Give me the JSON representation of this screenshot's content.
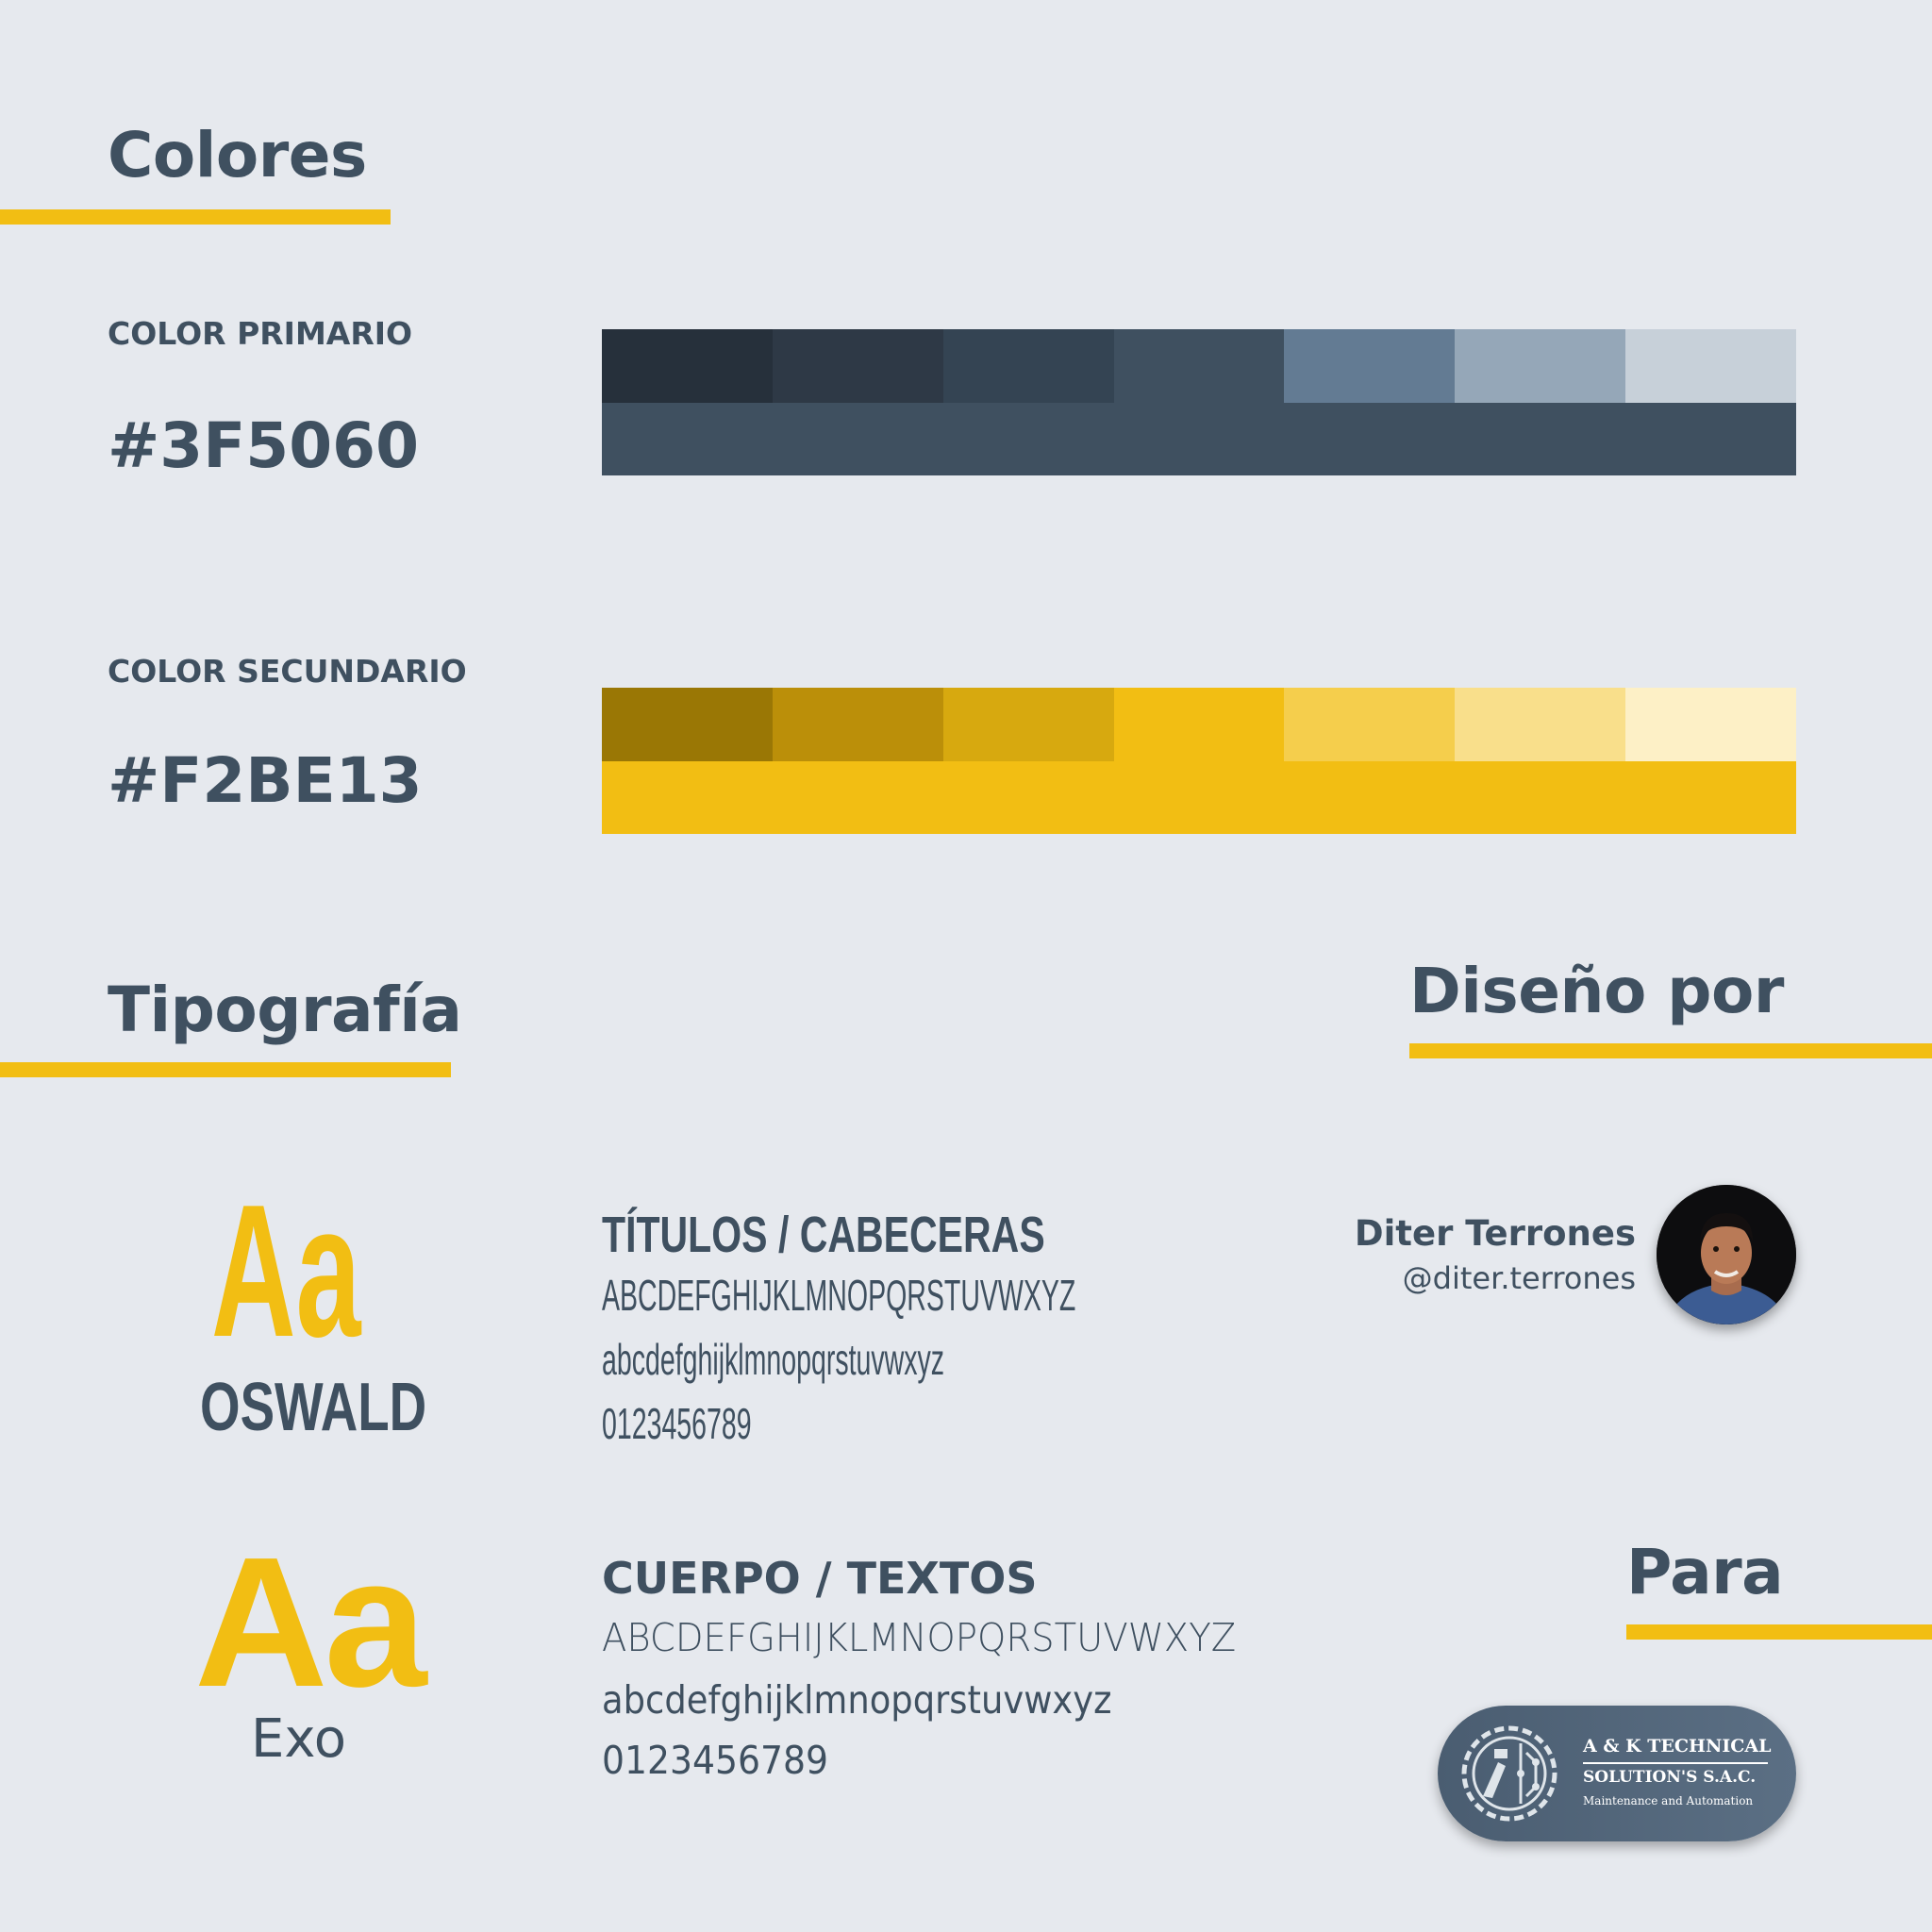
{
  "colores": {
    "title": "Colores"
  },
  "primary": {
    "label": "COLOR PRIMARIO",
    "hex": "#3F5060",
    "shades": [
      "#26303b",
      "#2e3946",
      "#344453",
      "#3f5060",
      "#637b93",
      "#95a7b8",
      "#c7d0d9"
    ],
    "main": "#3f5060"
  },
  "secondary": {
    "label": "COLOR SECUNDARIO",
    "hex": "#F2BE13",
    "shades": [
      "#9a7705",
      "#bb8f09",
      "#d7a90f",
      "#f2be13",
      "#f5ce4c",
      "#f9df8b",
      "#fdf0c6"
    ],
    "main": "#f2be13"
  },
  "tipografia": {
    "title": "Tipografía",
    "oswald": {
      "sample": "Aa",
      "name": "OSWALD",
      "heading": "TÍTULOS / CABECERAS",
      "upper": "ABCDEFGHIJKLMNOPQRSTUVWXYZ",
      "lower": "abcdefghijklmnopqrstuvwxyz",
      "digits": "0123456789"
    },
    "exo": {
      "sample": "Aa",
      "name": "Exo",
      "heading": "CUERPO / TEXTOS",
      "upper": "ABCDEFGHIJKLMNOPQRSTUVWXYZ",
      "lower": "abcdefghijklmnopqrstuvwxyz",
      "digits": "0123456789"
    }
  },
  "design": {
    "title": "Diseño por",
    "name": "Diter Terrones",
    "handle": "@diter.terrones"
  },
  "para": {
    "title": "Para",
    "logo_line1": "A & K TECHNICAL",
    "logo_line2": "SOLUTION'S S.A.C.",
    "logo_line3": "Maintenance and Automation"
  }
}
